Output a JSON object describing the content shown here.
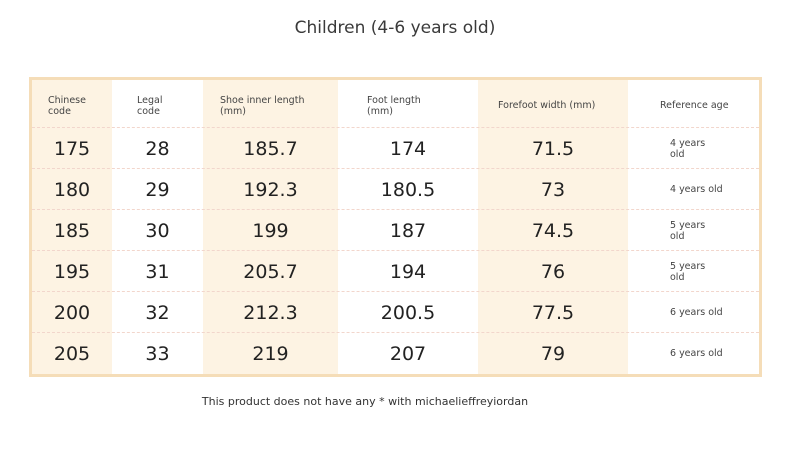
{
  "title": "Children (4-6 years old)",
  "columns": [
    {
      "line1": "Chinese",
      "line2": "code"
    },
    {
      "line1": "Legal",
      "line2": "code"
    },
    {
      "line1": "Shoe inner length",
      "line2": "(mm)"
    },
    {
      "line1": "Foot length",
      "line2": "(mm)"
    },
    {
      "line1": "Forefoot width (mm)",
      "line2": ""
    },
    {
      "line1": "Reference age",
      "line2": ""
    }
  ],
  "rows": [
    {
      "chinese": "175",
      "legal": "28",
      "inner": "185.7",
      "foot": "174",
      "width": "71.5",
      "age1": "4 years",
      "age2": "old"
    },
    {
      "chinese": "180",
      "legal": "29",
      "inner": "192.3",
      "foot": "180.5",
      "width": "73",
      "age1": "4 years old",
      "age2": ""
    },
    {
      "chinese": "185",
      "legal": "30",
      "inner": "199",
      "foot": "187",
      "width": "74.5",
      "age1": "5 years",
      "age2": "old"
    },
    {
      "chinese": "195",
      "legal": "31",
      "inner": "205.7",
      "foot": "194",
      "width": "76",
      "age1": "5 years",
      "age2": "old"
    },
    {
      "chinese": "200",
      "legal": "32",
      "inner": "212.3",
      "foot": "200.5",
      "width": "77.5",
      "age1": "6 years old",
      "age2": ""
    },
    {
      "chinese": "205",
      "legal": "33",
      "inner": "219",
      "foot": "207",
      "width": "79",
      "age1": "6 years old",
      "age2": ""
    }
  ],
  "footnote": "This product does not have any * with michaelieffreyiordan",
  "colors": {
    "frame": "#f5ddb8",
    "tint": "#fdf3e3",
    "row_divider": "#f2d6cc"
  }
}
